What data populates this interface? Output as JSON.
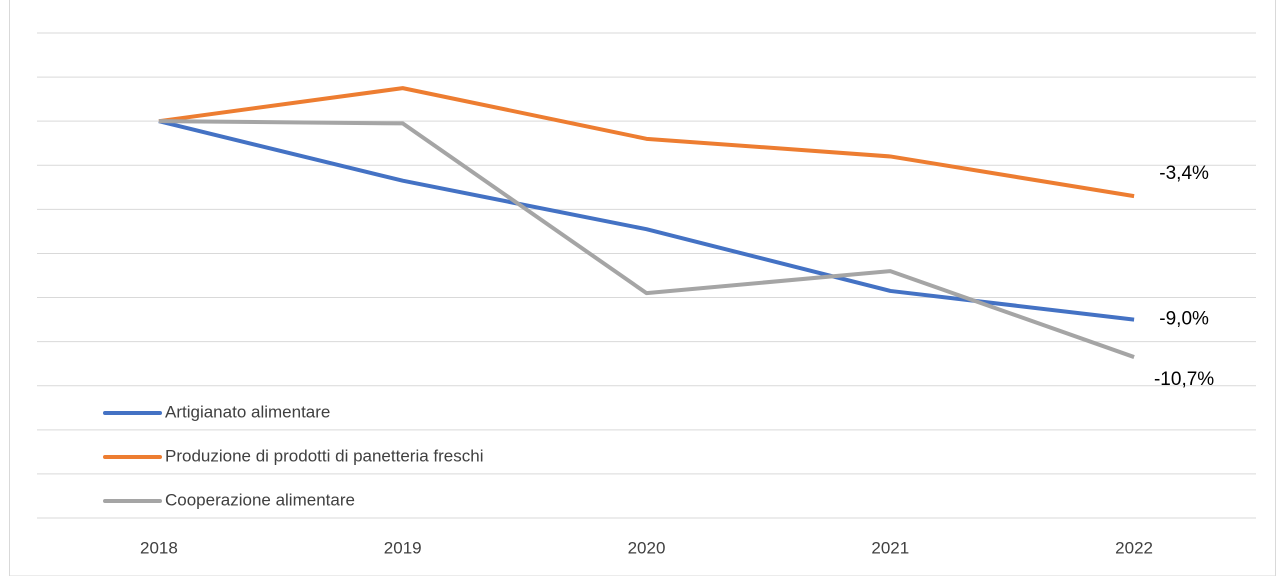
{
  "chart_data": {
    "type": "line",
    "categories": [
      "2018",
      "2019",
      "2020",
      "2021",
      "2022"
    ],
    "series": [
      {
        "name": "Artigianato alimentare",
        "color": "#4472c4",
        "values": [
          0,
          -2.7,
          -4.9,
          -7.7,
          -9.0
        ],
        "value_labels": [
          null,
          null,
          null,
          null,
          "-9,0%"
        ]
      },
      {
        "name": "Produzione di prodotti di panetteria freschi",
        "color": "#ed7d31",
        "values": [
          0,
          1.5,
          -0.8,
          -1.6,
          -3.4
        ],
        "value_labels": [
          null,
          null,
          null,
          null,
          "-3,4%"
        ]
      },
      {
        "name": "Cooperazione alimentare",
        "color": "#a5a5a5",
        "values": [
          0,
          -0.1,
          -7.8,
          -6.8,
          -10.7
        ],
        "value_labels": [
          null,
          null,
          null,
          null,
          "-10,7%"
        ]
      }
    ],
    "ylim": [
      -18,
      4
    ],
    "yticks": [
      -18,
      -16,
      -14,
      -12,
      -10,
      -8,
      -6,
      -4,
      -2,
      0,
      2,
      4
    ],
    "show_ytick_labels": false,
    "grid": true,
    "legend": "lower left"
  }
}
